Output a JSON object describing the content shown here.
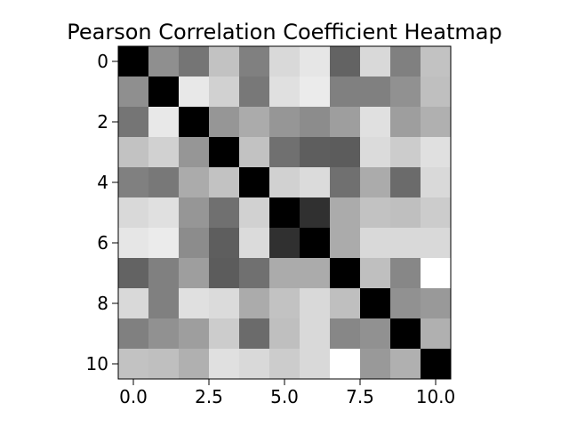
{
  "chart_data": {
    "type": "heatmap",
    "title": "Pearson Correlation Coefficient Heatmap",
    "xlabel": "",
    "ylabel": "",
    "colormap": "gray_r",
    "grid": false,
    "legend": "none",
    "rows": 11,
    "cols": 11,
    "xlim": [
      -0.5,
      10.5
    ],
    "ylim": [
      10.5,
      -0.5
    ],
    "x_ticks": [
      0.0,
      2.5,
      5.0,
      7.5,
      10.0
    ],
    "x_tick_labels": [
      "0.0",
      "2.5",
      "5.0",
      "7.5",
      "10.0"
    ],
    "y_ticks": [
      0,
      2,
      4,
      6,
      8,
      10
    ],
    "y_tick_labels": [
      "0",
      "2",
      "4",
      "6",
      "8",
      "10"
    ],
    "value_range": [
      0,
      1
    ],
    "values": [
      [
        1.0,
        0.44,
        0.54,
        0.24,
        0.5,
        0.15,
        0.1,
        0.61,
        0.15,
        0.5,
        0.24
      ],
      [
        0.44,
        1.0,
        0.09,
        0.18,
        0.53,
        0.12,
        0.08,
        0.5,
        0.5,
        0.43,
        0.25
      ],
      [
        0.54,
        0.09,
        1.0,
        0.41,
        0.33,
        0.41,
        0.45,
        0.38,
        0.12,
        0.38,
        0.31
      ],
      [
        0.24,
        0.18,
        0.41,
        1.0,
        0.24,
        0.56,
        0.63,
        0.64,
        0.14,
        0.2,
        0.12
      ],
      [
        0.5,
        0.53,
        0.33,
        0.24,
        1.0,
        0.18,
        0.14,
        0.56,
        0.33,
        0.58,
        0.15
      ],
      [
        0.15,
        0.12,
        0.41,
        0.56,
        0.18,
        1.0,
        0.81,
        0.33,
        0.24,
        0.25,
        0.2
      ],
      [
        0.1,
        0.08,
        0.45,
        0.63,
        0.14,
        0.81,
        1.0,
        0.33,
        0.15,
        0.15,
        0.15
      ],
      [
        0.61,
        0.5,
        0.38,
        0.64,
        0.56,
        0.33,
        0.33,
        1.0,
        0.25,
        0.47,
        0.0
      ],
      [
        0.15,
        0.5,
        0.12,
        0.14,
        0.33,
        0.24,
        0.15,
        0.25,
        1.0,
        0.43,
        0.4
      ],
      [
        0.5,
        0.43,
        0.38,
        0.2,
        0.58,
        0.25,
        0.15,
        0.47,
        0.43,
        1.0,
        0.31
      ],
      [
        0.24,
        0.25,
        0.31,
        0.12,
        0.15,
        0.2,
        0.15,
        0.0,
        0.4,
        0.31,
        1.0
      ]
    ]
  }
}
